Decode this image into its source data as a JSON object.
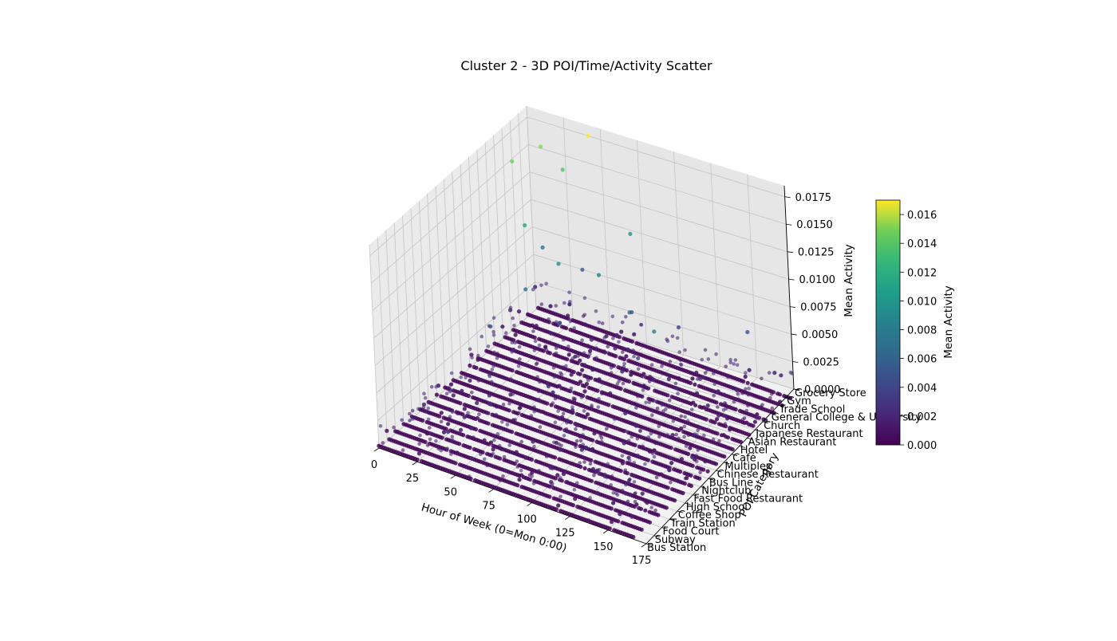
{
  "chart_data": {
    "type": "scatter3d",
    "title": "Cluster 2 - 3D POI/Time/Activity Scatter",
    "xlabel": "Hour of Week (0=Mon 0:00)",
    "ylabel": "POI Category",
    "zlabel": "Mean Activity",
    "xlim": [
      0,
      175
    ],
    "zlim": [
      0,
      0.0185
    ],
    "x_ticks": [
      "0",
      "25",
      "50",
      "75",
      "100",
      "125",
      "150",
      "175"
    ],
    "z_ticks": [
      "0.0000",
      "0.0025",
      "0.0050",
      "0.0075",
      "0.0100",
      "0.0125",
      "0.0150",
      "0.0175"
    ],
    "categories": [
      "Bus Station",
      "Subway",
      "Food Court",
      "Train Station",
      "Coffee Shop",
      "High School",
      "Fast Food Restaurant",
      "Nightclub",
      "Bus Line",
      "Chinese Restaurant",
      "Multiplex",
      "Café",
      "Hotel",
      "Asian Restaurant",
      "Japanese Restaurant",
      "Church",
      "General College & University",
      "Trade School",
      "Gym",
      "Grocery Store"
    ],
    "colormap": "viridis",
    "colorbar": {
      "label": "Mean Activity",
      "range": [
        0,
        0.017
      ],
      "ticks": [
        "0.000",
        "0.002",
        "0.004",
        "0.006",
        "0.008",
        "0.010",
        "0.012",
        "0.014",
        "0.016"
      ]
    },
    "baseline_value": 0.0002,
    "highlight_points": [
      {
        "x": 40,
        "category": "Grocery Store",
        "z": 0.0178
      },
      {
        "x": 8,
        "category": "Grocery Store",
        "z": 0.0152
      },
      {
        "x": 0,
        "category": "Trade School",
        "z": 0.0148
      },
      {
        "x": 22,
        "category": "Grocery Store",
        "z": 0.0138
      },
      {
        "x": 18,
        "category": "Church",
        "z": 0.0112
      },
      {
        "x": 65,
        "category": "Grocery Store",
        "z": 0.0101
      },
      {
        "x": 45,
        "category": "Japanese Restaurant",
        "z": 0.0097
      },
      {
        "x": 118,
        "category": "Hotel",
        "z": 0.0085
      },
      {
        "x": 28,
        "category": "Asian Restaurant",
        "z": 0.0072
      },
      {
        "x": 12,
        "category": "Gym",
        "z": 0.0069
      },
      {
        "x": 60,
        "category": "General College & University",
        "z": 0.0081
      },
      {
        "x": 85,
        "category": "Church",
        "z": 0.0066
      },
      {
        "x": 140,
        "category": "Grocery Store",
        "z": 0.0049
      },
      {
        "x": 100,
        "category": "Gym",
        "z": 0.004
      },
      {
        "x": 75,
        "category": "Trade School",
        "z": 0.0048
      },
      {
        "x": 32,
        "category": "Grocery Store",
        "z": 0.0052
      },
      {
        "x": 55,
        "category": "Hotel",
        "z": 0.0061
      },
      {
        "x": 95,
        "category": "Japanese Restaurant",
        "z": 0.0036
      },
      {
        "x": 15,
        "category": "Café",
        "z": 0.0045
      },
      {
        "x": 130,
        "category": "Church",
        "z": 0.0028
      }
    ]
  }
}
